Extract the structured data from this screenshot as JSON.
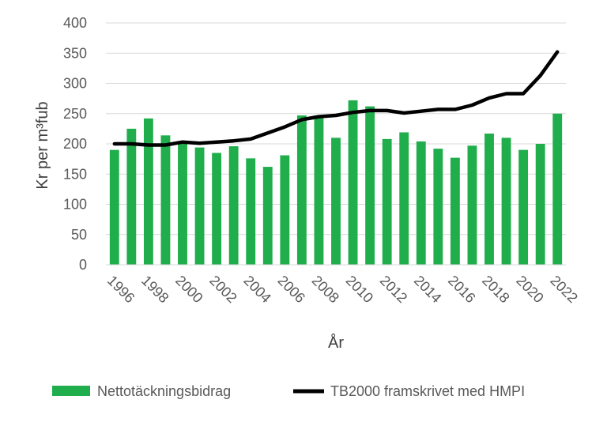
{
  "chart_data": {
    "type": "bar",
    "title": "",
    "xlabel": "År",
    "ylabel": "Kr per m³fub",
    "ylim": [
      0,
      400
    ],
    "yticks": [
      "0",
      "50",
      "100",
      "150",
      "200",
      "250",
      "300",
      "350",
      "400"
    ],
    "categories": [
      "1996",
      "1997",
      "1998",
      "1999",
      "2000",
      "2001",
      "2002",
      "2003",
      "2004",
      "2005",
      "2006",
      "2007",
      "2008",
      "2009",
      "2010",
      "2011",
      "2012",
      "2013",
      "2014",
      "2015",
      "2016",
      "2017",
      "2018",
      "2019",
      "2020",
      "2021",
      "2022"
    ],
    "xtick_labels": [
      "1996",
      "1998",
      "2000",
      "2002",
      "2004",
      "2006",
      "2008",
      "2010",
      "2012",
      "2014",
      "2016",
      "2018",
      "2020",
      "2022"
    ],
    "grid": true,
    "legend_position": "bottom",
    "series": [
      {
        "name": "Nettotäckningsbidrag",
        "type": "bar",
        "color": "#1FAE4B",
        "values": [
          190,
          225,
          242,
          214,
          200,
          194,
          185,
          196,
          176,
          162,
          181,
          247,
          247,
          210,
          272,
          262,
          208,
          219,
          204,
          192,
          177,
          197,
          217,
          210,
          190,
          200,
          250
        ]
      },
      {
        "name": "TB2000 framskrivet med HMPI",
        "type": "line",
        "color": "#000000",
        "values": [
          200,
          200,
          198,
          198,
          203,
          201,
          203,
          205,
          208,
          218,
          228,
          240,
          245,
          247,
          252,
          255,
          255,
          251,
          254,
          257,
          257,
          264,
          276,
          283,
          283,
          313,
          352
        ]
      }
    ]
  }
}
